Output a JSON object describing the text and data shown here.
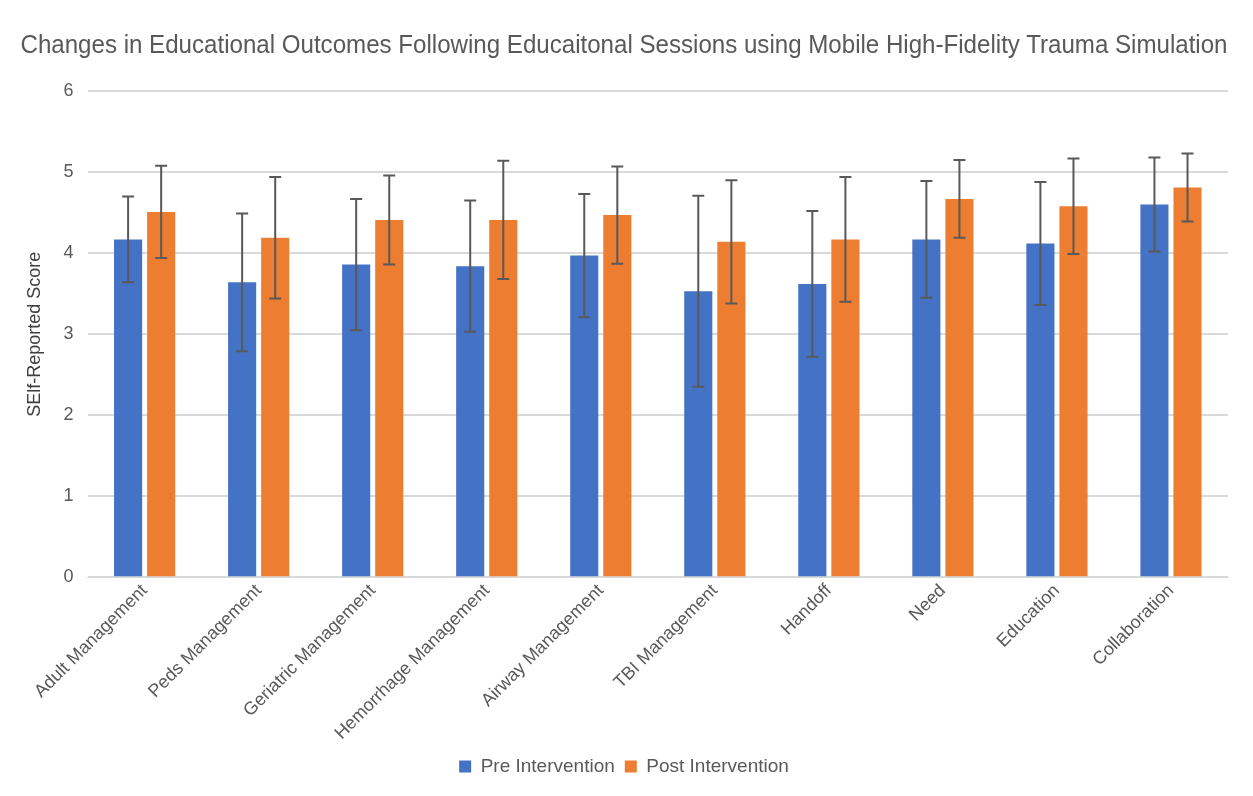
{
  "chart_data": {
    "type": "bar",
    "title": "Changes in Educational Outcomes Following Educaitonal Sessions using Mobile High-Fidelity Trauma Simulation",
    "ylabel": "SElf-Reported Score",
    "categories": [
      "Adult Management",
      "Peds Management",
      "Geriatric Management",
      "Hemorrhage Management",
      "Airway Management",
      "TBI Management",
      "Handoff",
      "Need",
      "Education",
      "Collaboration"
    ],
    "series": [
      {
        "name": "Pre Intervention",
        "color": "#4472c4",
        "values": [
          4.17,
          3.64,
          3.86,
          3.84,
          3.97,
          3.53,
          3.62,
          4.17,
          4.12,
          4.6
        ],
        "errors": [
          0.53,
          0.85,
          0.81,
          0.81,
          0.76,
          1.18,
          0.9,
          0.72,
          0.76,
          0.58
        ]
      },
      {
        "name": "Post Intervention",
        "color": "#ed7d31",
        "values": [
          4.51,
          4.19,
          4.41,
          4.41,
          4.47,
          4.14,
          4.17,
          4.67,
          4.58,
          4.81
        ],
        "errors": [
          0.57,
          0.75,
          0.55,
          0.73,
          0.6,
          0.76,
          0.77,
          0.48,
          0.59,
          0.42
        ]
      }
    ],
    "ylim": [
      0,
      6
    ],
    "yticks": [
      0,
      1,
      2,
      3,
      4,
      5,
      6
    ],
    "grid": "y",
    "legend": "bottom"
  }
}
